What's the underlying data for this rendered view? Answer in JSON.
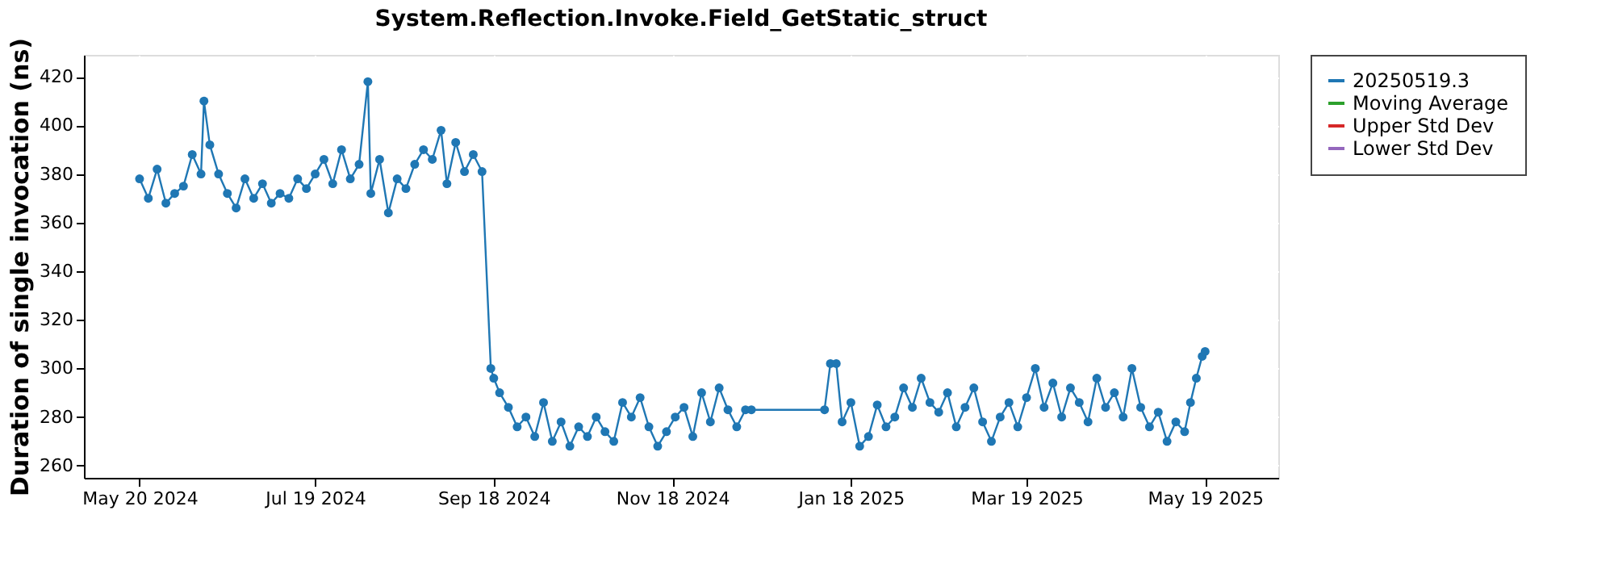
{
  "chart_data": {
    "type": "line",
    "title": "System.Reflection.Invoke.Field_GetStatic_struct",
    "ylabel": "Duration of single invocation (ns)",
    "xlim": [
      "2024-05-01",
      "2025-06-13"
    ],
    "xticks": [
      {
        "value": "2024-05-20",
        "label": "May 20 2024"
      },
      {
        "value": "2024-07-19",
        "label": "Jul 19 2024"
      },
      {
        "value": "2024-09-18",
        "label": "Sep 18 2024"
      },
      {
        "value": "2024-11-18",
        "label": "Nov 18 2024"
      },
      {
        "value": "2025-01-18",
        "label": "Jan 18 2025"
      },
      {
        "value": "2025-03-19",
        "label": "Mar 19 2025"
      },
      {
        "value": "2025-05-19",
        "label": "May 19 2025"
      }
    ],
    "ylim": [
      255,
      429
    ],
    "yticks": [
      260,
      280,
      300,
      320,
      340,
      360,
      380,
      400,
      420
    ],
    "grid": true,
    "legend": "right",
    "marker": "circle",
    "line_style": "solid",
    "series": [
      {
        "name": "20250519.3",
        "color": "#1f77b4",
        "x": [
          "2024-05-20",
          "2024-05-23",
          "2024-05-26",
          "2024-05-29",
          "2024-06-01",
          "2024-06-04",
          "2024-06-07",
          "2024-06-10",
          "2024-06-11",
          "2024-06-13",
          "2024-06-16",
          "2024-06-19",
          "2024-06-22",
          "2024-06-25",
          "2024-06-28",
          "2024-07-01",
          "2024-07-04",
          "2024-07-07",
          "2024-07-10",
          "2024-07-13",
          "2024-07-16",
          "2024-07-19",
          "2024-07-22",
          "2024-07-25",
          "2024-07-28",
          "2024-07-31",
          "2024-08-03",
          "2024-08-06",
          "2024-08-07",
          "2024-08-10",
          "2024-08-13",
          "2024-08-16",
          "2024-08-19",
          "2024-08-22",
          "2024-08-25",
          "2024-08-28",
          "2024-08-31",
          "2024-09-02",
          "2024-09-05",
          "2024-09-08",
          "2024-09-11",
          "2024-09-14",
          "2024-09-17",
          "2024-09-18",
          "2024-09-20",
          "2024-09-23",
          "2024-09-26",
          "2024-09-29",
          "2024-10-02",
          "2024-10-05",
          "2024-10-08",
          "2024-10-11",
          "2024-10-14",
          "2024-10-17",
          "2024-10-20",
          "2024-10-23",
          "2024-10-26",
          "2024-10-29",
          "2024-11-01",
          "2024-11-04",
          "2024-11-07",
          "2024-11-10",
          "2024-11-13",
          "2024-11-16",
          "2024-11-19",
          "2024-11-22",
          "2024-11-25",
          "2024-11-28",
          "2024-12-01",
          "2024-12-04",
          "2024-12-07",
          "2024-12-10",
          "2024-12-13",
          "2024-12-15",
          "2025-01-09",
          "2025-01-11",
          "2025-01-13",
          "2025-01-15",
          "2025-01-18",
          "2025-01-21",
          "2025-01-24",
          "2025-01-27",
          "2025-01-30",
          "2025-02-02",
          "2025-02-05",
          "2025-02-08",
          "2025-02-11",
          "2025-02-14",
          "2025-02-17",
          "2025-02-20",
          "2025-02-23",
          "2025-02-26",
          "2025-03-01",
          "2025-03-04",
          "2025-03-07",
          "2025-03-10",
          "2025-03-13",
          "2025-03-16",
          "2025-03-19",
          "2025-03-22",
          "2025-03-25",
          "2025-03-28",
          "2025-03-31",
          "2025-04-03",
          "2025-04-06",
          "2025-04-09",
          "2025-04-12",
          "2025-04-15",
          "2025-04-18",
          "2025-04-21",
          "2025-04-24",
          "2025-04-27",
          "2025-04-30",
          "2025-05-03",
          "2025-05-06",
          "2025-05-09",
          "2025-05-12",
          "2025-05-14",
          "2025-05-16",
          "2025-05-18",
          "2025-05-19"
        ],
        "values": [
          378,
          370,
          382,
          368,
          372,
          375,
          388,
          380,
          410,
          392,
          380,
          372,
          366,
          378,
          370,
          376,
          368,
          372,
          370,
          378,
          374,
          380,
          386,
          376,
          390,
          378,
          384,
          418,
          372,
          386,
          364,
          378,
          374,
          384,
          390,
          386,
          398,
          376,
          393,
          381,
          388,
          381,
          300,
          296,
          290,
          284,
          276,
          280,
          272,
          286,
          270,
          278,
          268,
          276,
          272,
          280,
          274,
          270,
          286,
          280,
          288,
          276,
          268,
          274,
          280,
          284,
          272,
          290,
          278,
          292,
          283,
          276,
          283,
          283,
          283,
          302,
          302,
          278,
          286,
          268,
          272,
          285,
          276,
          280,
          292,
          284,
          296,
          286,
          282,
          290,
          276,
          284,
          292,
          278,
          270,
          280,
          286,
          276,
          288,
          300,
          284,
          294,
          280,
          292,
          286,
          278,
          296,
          284,
          290,
          280,
          300,
          284,
          276,
          282,
          270,
          278,
          274,
          286,
          296,
          305,
          307
        ]
      },
      {
        "name": "Moving Average",
        "color": "#2ca02c"
      },
      {
        "name": "Upper Std Dev",
        "color": "#d62728"
      },
      {
        "name": "Lower Std Dev",
        "color": "#9467bd"
      }
    ]
  }
}
